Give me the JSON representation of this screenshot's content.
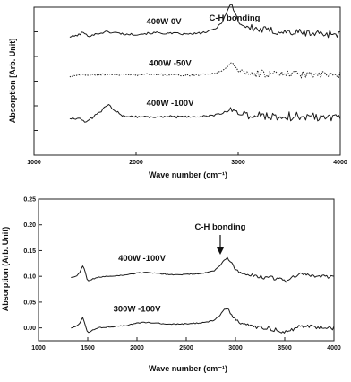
{
  "chart_data": [
    {
      "type": "line",
      "xlabel": "Wave number (cm⁻¹)",
      "ylabel": "Absorption [Arb. Unit]",
      "xlim": [
        1000,
        4000
      ],
      "x_ticks": [
        "1000",
        "2000",
        "3000",
        "4000"
      ],
      "y_ticks_labeled": false,
      "grid": false,
      "annotation": "C-H bonding",
      "annotation_x": 2930,
      "series": [
        {
          "name": "400W 0V",
          "style": "solid",
          "baseline": 0.8,
          "x": [
            1350,
            1400,
            1450,
            1480,
            1500,
            1530,
            1600,
            1700,
            1800,
            1900,
            2000,
            2100,
            2200,
            2300,
            2400,
            2500,
            2600,
            2700,
            2780,
            2840,
            2880,
            2910,
            2935,
            2960,
            2990,
            3030,
            3080,
            3150,
            3250,
            3350,
            3450,
            3550,
            3650,
            3750,
            3850,
            3950,
            4000
          ],
          "values": [
            0.0,
            0.01,
            0.03,
            0.06,
            0.03,
            0.01,
            0.03,
            0.06,
            0.05,
            0.03,
            0.03,
            0.04,
            0.05,
            0.04,
            0.04,
            0.03,
            0.04,
            0.06,
            0.1,
            0.18,
            0.28,
            0.36,
            0.4,
            0.33,
            0.22,
            0.15,
            0.12,
            0.1,
            0.08,
            0.07,
            0.06,
            0.05,
            0.05,
            0.04,
            0.04,
            0.04,
            0.04
          ],
          "noise": 0.05
        },
        {
          "name": "400W -50V",
          "style": "dotted",
          "baseline": 0.53,
          "x": [
            1350,
            1450,
            1480,
            1510,
            1600,
            1700,
            1800,
            1900,
            2000,
            2100,
            2200,
            2300,
            2400,
            2500,
            2600,
            2700,
            2800,
            2870,
            2910,
            2935,
            2960,
            3000,
            3060,
            3150,
            3250,
            3350,
            3450,
            3550,
            3650,
            3750,
            3850,
            3950,
            4000
          ],
          "values": [
            0.0,
            0.02,
            0.03,
            0.02,
            0.02,
            0.03,
            0.03,
            0.02,
            0.02,
            0.03,
            0.03,
            0.02,
            0.02,
            0.02,
            0.02,
            0.03,
            0.05,
            0.1,
            0.14,
            0.16,
            0.13,
            0.08,
            0.05,
            0.04,
            0.04,
            0.03,
            0.03,
            0.03,
            0.03,
            0.02,
            0.02,
            0.02,
            0.02
          ],
          "noise": 0.045
        },
        {
          "name": "400W -100V",
          "style": "solid",
          "baseline": 0.25,
          "x": [
            1350,
            1420,
            1480,
            1510,
            1550,
            1600,
            1650,
            1700,
            1730,
            1770,
            1850,
            1950,
            2050,
            2150,
            2250,
            2350,
            2450,
            2550,
            2650,
            2750,
            2850,
            2900,
            2935,
            2970,
            3020,
            3100,
            3200,
            3300,
            3400,
            3500,
            3600,
            3700,
            3800,
            3900,
            4000
          ],
          "values": [
            0.0,
            0.0,
            -0.03,
            -0.05,
            -0.01,
            0.03,
            0.08,
            0.14,
            0.16,
            0.12,
            0.04,
            0.02,
            0.02,
            0.01,
            0.02,
            0.02,
            0.01,
            0.02,
            0.02,
            0.03,
            0.06,
            0.09,
            0.11,
            0.09,
            0.06,
            0.04,
            0.03,
            0.03,
            0.02,
            0.02,
            0.02,
            0.02,
            0.02,
            0.02,
            0.02
          ],
          "noise": 0.06
        }
      ]
    },
    {
      "type": "line",
      "xlabel": "Wave number (cm⁻¹)",
      "ylabel": "Absorption (Arb. Unit)",
      "xlim": [
        1000,
        4000
      ],
      "ylim": [
        -0.025,
        0.25
      ],
      "x_ticks": [
        "1000",
        "1500",
        "2000",
        "2500",
        "3000",
        "3500",
        "4000"
      ],
      "y_ticks": [
        "0.00",
        "0.05",
        "0.10",
        "0.15",
        "0.20",
        "0.25"
      ],
      "grid": false,
      "annotation": "C-H bonding",
      "annotation_x": 2910,
      "series": [
        {
          "name": "400W -100V",
          "style": "solid",
          "x": [
            1330,
            1380,
            1420,
            1450,
            1470,
            1500,
            1550,
            1600,
            1700,
            1800,
            1900,
            2000,
            2100,
            2200,
            2300,
            2400,
            2500,
            2600,
            2700,
            2780,
            2830,
            2870,
            2900,
            2920,
            2950,
            3000,
            3060,
            3150,
            3250,
            3350,
            3450,
            3500,
            3550,
            3650,
            3750,
            3850,
            3950,
            4000
          ],
          "values": [
            0.098,
            0.1,
            0.108,
            0.12,
            0.112,
            0.09,
            0.095,
            0.098,
            0.1,
            0.101,
            0.103,
            0.106,
            0.108,
            0.106,
            0.104,
            0.103,
            0.104,
            0.105,
            0.107,
            0.11,
            0.118,
            0.128,
            0.135,
            0.136,
            0.128,
            0.114,
            0.106,
            0.101,
            0.099,
            0.098,
            0.094,
            0.09,
            0.096,
            0.104,
            0.102,
            0.1,
            0.1,
            0.1
          ],
          "noise": 0.004
        },
        {
          "name": "300W -100V",
          "style": "solid",
          "x": [
            1330,
            1380,
            1420,
            1450,
            1470,
            1500,
            1550,
            1600,
            1700,
            1800,
            1900,
            2000,
            2100,
            2200,
            2300,
            2400,
            2500,
            2600,
            2700,
            2780,
            2830,
            2870,
            2900,
            2920,
            2950,
            3000,
            3060,
            3150,
            3250,
            3350,
            3450,
            3500,
            3550,
            3650,
            3750,
            3850,
            3950,
            4000
          ],
          "values": [
            0.0,
            0.003,
            0.01,
            0.02,
            0.008,
            -0.01,
            -0.004,
            0.0,
            0.002,
            0.003,
            0.005,
            0.009,
            0.011,
            0.009,
            0.008,
            0.007,
            0.008,
            0.009,
            0.011,
            0.015,
            0.022,
            0.032,
            0.038,
            0.037,
            0.028,
            0.016,
            0.008,
            0.003,
            0.0,
            -0.002,
            -0.005,
            -0.01,
            -0.004,
            0.002,
            0.002,
            0.001,
            0.0,
            0.0
          ],
          "noise": 0.004
        }
      ]
    }
  ]
}
